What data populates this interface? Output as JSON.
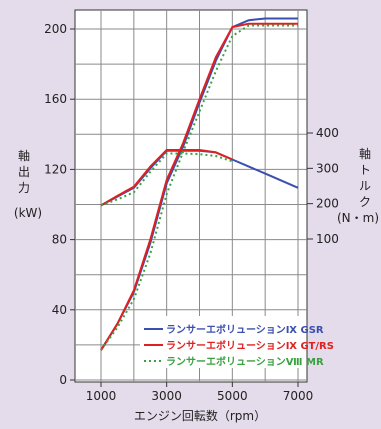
{
  "chart_data": {
    "type": "line",
    "x_label": "エンジン回転数（rpm）",
    "left_axis": {
      "label_chars": [
        "軸",
        "出",
        "力"
      ],
      "unit": "(kW)",
      "ylim": [
        0,
        210
      ],
      "ticks": [
        "0",
        "40",
        "80",
        "120",
        "160",
        "200"
      ]
    },
    "right_axis": {
      "label_chars": [
        "軸",
        "ト",
        "ル",
        "ク"
      ],
      "unit": "(N・m)",
      "ylim": [
        100,
        400
      ],
      "ticks": [
        "100",
        "200",
        "300",
        "400"
      ]
    },
    "x_ticks": [
      "1000",
      "3000",
      "5000",
      "7000"
    ],
    "xlim": [
      1000,
      7000
    ],
    "grid": true,
    "legend_position": "bottom-right",
    "series": [
      {
        "name": "ランサーエボリューションⅨ GSR",
        "color": "#3b4fb0",
        "dash": "solid",
        "power": [
          [
            1000,
            17
          ],
          [
            1500,
            32
          ],
          [
            2000,
            50
          ],
          [
            2500,
            78
          ],
          [
            3000,
            112
          ],
          [
            3500,
            133
          ],
          [
            4000,
            158
          ],
          [
            4500,
            182
          ],
          [
            5000,
            201
          ],
          [
            5500,
            205
          ],
          [
            6000,
            206
          ],
          [
            6500,
            206
          ],
          [
            7000,
            206
          ]
        ],
        "torque": [
          [
            1000,
            195
          ],
          [
            1500,
            220
          ],
          [
            2000,
            245
          ],
          [
            2500,
            300
          ],
          [
            3000,
            350
          ],
          [
            3500,
            350
          ],
          [
            4000,
            350
          ],
          [
            4500,
            345
          ],
          [
            5000,
            325
          ],
          [
            5500,
            305
          ],
          [
            6000,
            285
          ],
          [
            6500,
            265
          ],
          [
            7000,
            245
          ]
        ]
      },
      {
        "name": "ランサーエボリューションⅨ GT/RS",
        "color": "#e02020",
        "dash": "solid",
        "power": [
          [
            1000,
            17
          ],
          [
            1500,
            32
          ],
          [
            2000,
            51
          ],
          [
            2500,
            80
          ],
          [
            3000,
            114
          ],
          [
            3500,
            135
          ],
          [
            4000,
            160
          ],
          [
            4500,
            184
          ],
          [
            5000,
            201
          ],
          [
            5500,
            203
          ],
          [
            6000,
            203
          ],
          [
            6500,
            203
          ],
          [
            7000,
            203
          ]
        ],
        "torque": [
          [
            1000,
            195
          ],
          [
            1500,
            222
          ],
          [
            2000,
            248
          ],
          [
            2500,
            305
          ],
          [
            3000,
            352
          ],
          [
            3500,
            352
          ],
          [
            4000,
            352
          ],
          [
            4500,
            345
          ],
          [
            5000,
            325
          ]
        ]
      },
      {
        "name": "ランサーエボリューションⅧ MR",
        "color": "#3aa040",
        "dash": "dotted",
        "power": [
          [
            1000,
            17
          ],
          [
            1500,
            30
          ],
          [
            2000,
            46
          ],
          [
            2500,
            72
          ],
          [
            3000,
            106
          ],
          [
            3500,
            130
          ],
          [
            4000,
            153
          ],
          [
            4500,
            176
          ],
          [
            5000,
            196
          ],
          [
            5500,
            202
          ],
          [
            6000,
            202
          ],
          [
            6500,
            202
          ],
          [
            7000,
            202
          ]
        ],
        "torque": [
          [
            1000,
            195
          ],
          [
            1500,
            212
          ],
          [
            2000,
            232
          ],
          [
            2500,
            290
          ],
          [
            3000,
            342
          ],
          [
            3500,
            342
          ],
          [
            4000,
            340
          ],
          [
            4500,
            335
          ],
          [
            5000,
            320
          ]
        ]
      }
    ]
  }
}
